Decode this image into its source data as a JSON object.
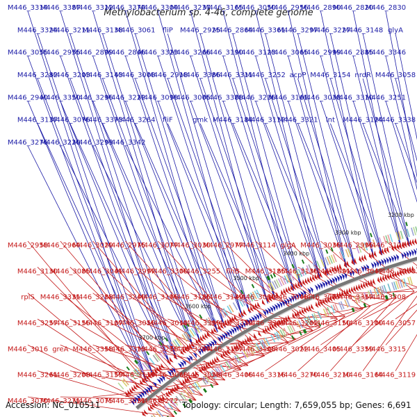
{
  "title": "Methylobacterium sp. 4-46, complete genome",
  "footer": {
    "accession": "Accession: NC_010511",
    "summary": "Topology: circular; Length: 7,659,055 bp; Genes: 6,691"
  },
  "colors": {
    "forward": "#1a1aa6",
    "reverse": "#c41818",
    "backbone": "#777777",
    "rna": "#1b7a1b"
  },
  "kbp_marks": [
    "3200 kbp",
    "3300 kbp",
    "3400 kbp",
    "3500 kbp",
    "3600 kbp",
    "3700 kbp"
  ],
  "forward_labels": [
    "M446_3314",
    "M446_3387",
    "M446_3312",
    "M446_3374",
    "M446_3304",
    "M446_3237",
    "M446_3165",
    "M446_3050",
    "M446_2956",
    "M446_2890",
    "M446_2820",
    "M446_2830",
    "M446_3324",
    "M446_3211",
    "M446_3138",
    "M446_3061",
    "fliP",
    "M446_2925",
    "M446_2864",
    "M446_3361",
    "M446_3297",
    "M446_3227",
    "M446_3148",
    "glyA",
    "M446_3055",
    "M446_2955",
    "M446_2899",
    "M446_2846",
    "M446_3323",
    "M446_3266",
    "M446_3190",
    "M446_3123",
    "M446_3065",
    "M446_2999",
    "M446_2885",
    "M446_3346",
    "M446_3282",
    "M446_3203",
    "M446_3143",
    "M446_3008",
    "M446_2918",
    "M446_3386",
    "M446_3311",
    "M446_3252",
    "acpP",
    "M446_3154",
    "nrdR",
    "M446_3058",
    "M446_2940",
    "M446_3350",
    "M446_3296",
    "M446_3222",
    "M446_3098",
    "M446_3005",
    "M446_3388",
    "M446_3236",
    "M446_3161",
    "M446_3038",
    "M446_3310",
    "M446_3251",
    "M446_3137",
    "M446_3076",
    "M446_3373",
    "M446_3264",
    "fliF",
    "gmk",
    "M446_3184",
    "M446_3112",
    "M446_3321",
    "lnt",
    "M446_3124",
    "M446_3338",
    "M446_3276",
    "M446_3220",
    "M446_3293",
    "M446_3342"
  ],
  "reverse_labels": [
    "M446_2958",
    "M446_2964",
    "M446_3029",
    "M446_2975",
    "M446_3077",
    "M446_3030",
    "M446_2977",
    "M446_3114",
    "glgA",
    "M446_3036",
    "M446_2996",
    "M446_3121",
    "M446_3130",
    "M446_3085",
    "M446_3041",
    "M446_2997",
    "M446_3300",
    "M446_3255",
    "flhB",
    "M446_3185",
    "M446_3136",
    "M446_3091",
    "M446_3042",
    "M446_3000",
    "rplS",
    "M446_3331",
    "M446_3288",
    "M446_3249",
    "M446_3196",
    "M446_3186",
    "M446_3149",
    "M446_3099",
    "M446_3048",
    "M446_3007",
    "M446_3357",
    "M446_3308",
    "M446_3257",
    "M446_3156",
    "M446_3107",
    "M446_3056",
    "M446_3014",
    "M446_3399",
    "M446_3332",
    "M446_3303",
    "M446_3202",
    "M446_3150",
    "M446_3100",
    "M446_3057",
    "M446_3016",
    "greA",
    "M446_3358",
    "M446_3313",
    "M446_3258",
    "M446_3207",
    "M446_3157",
    "M446_3108",
    "M446_3022",
    "M446_3405",
    "M446_3359",
    "M446_3315",
    "M446_3261",
    "M446_3208",
    "M446_3159",
    "M446_3115",
    "M446_3060",
    "M446_3023",
    "M446_3406",
    "M446_3316",
    "M446_3270",
    "M446_3210",
    "M446_3164",
    "M446_3119",
    "M446_3070",
    "M446_3271",
    "M446_3075",
    "M446_3031",
    "M446_3272"
  ]
}
